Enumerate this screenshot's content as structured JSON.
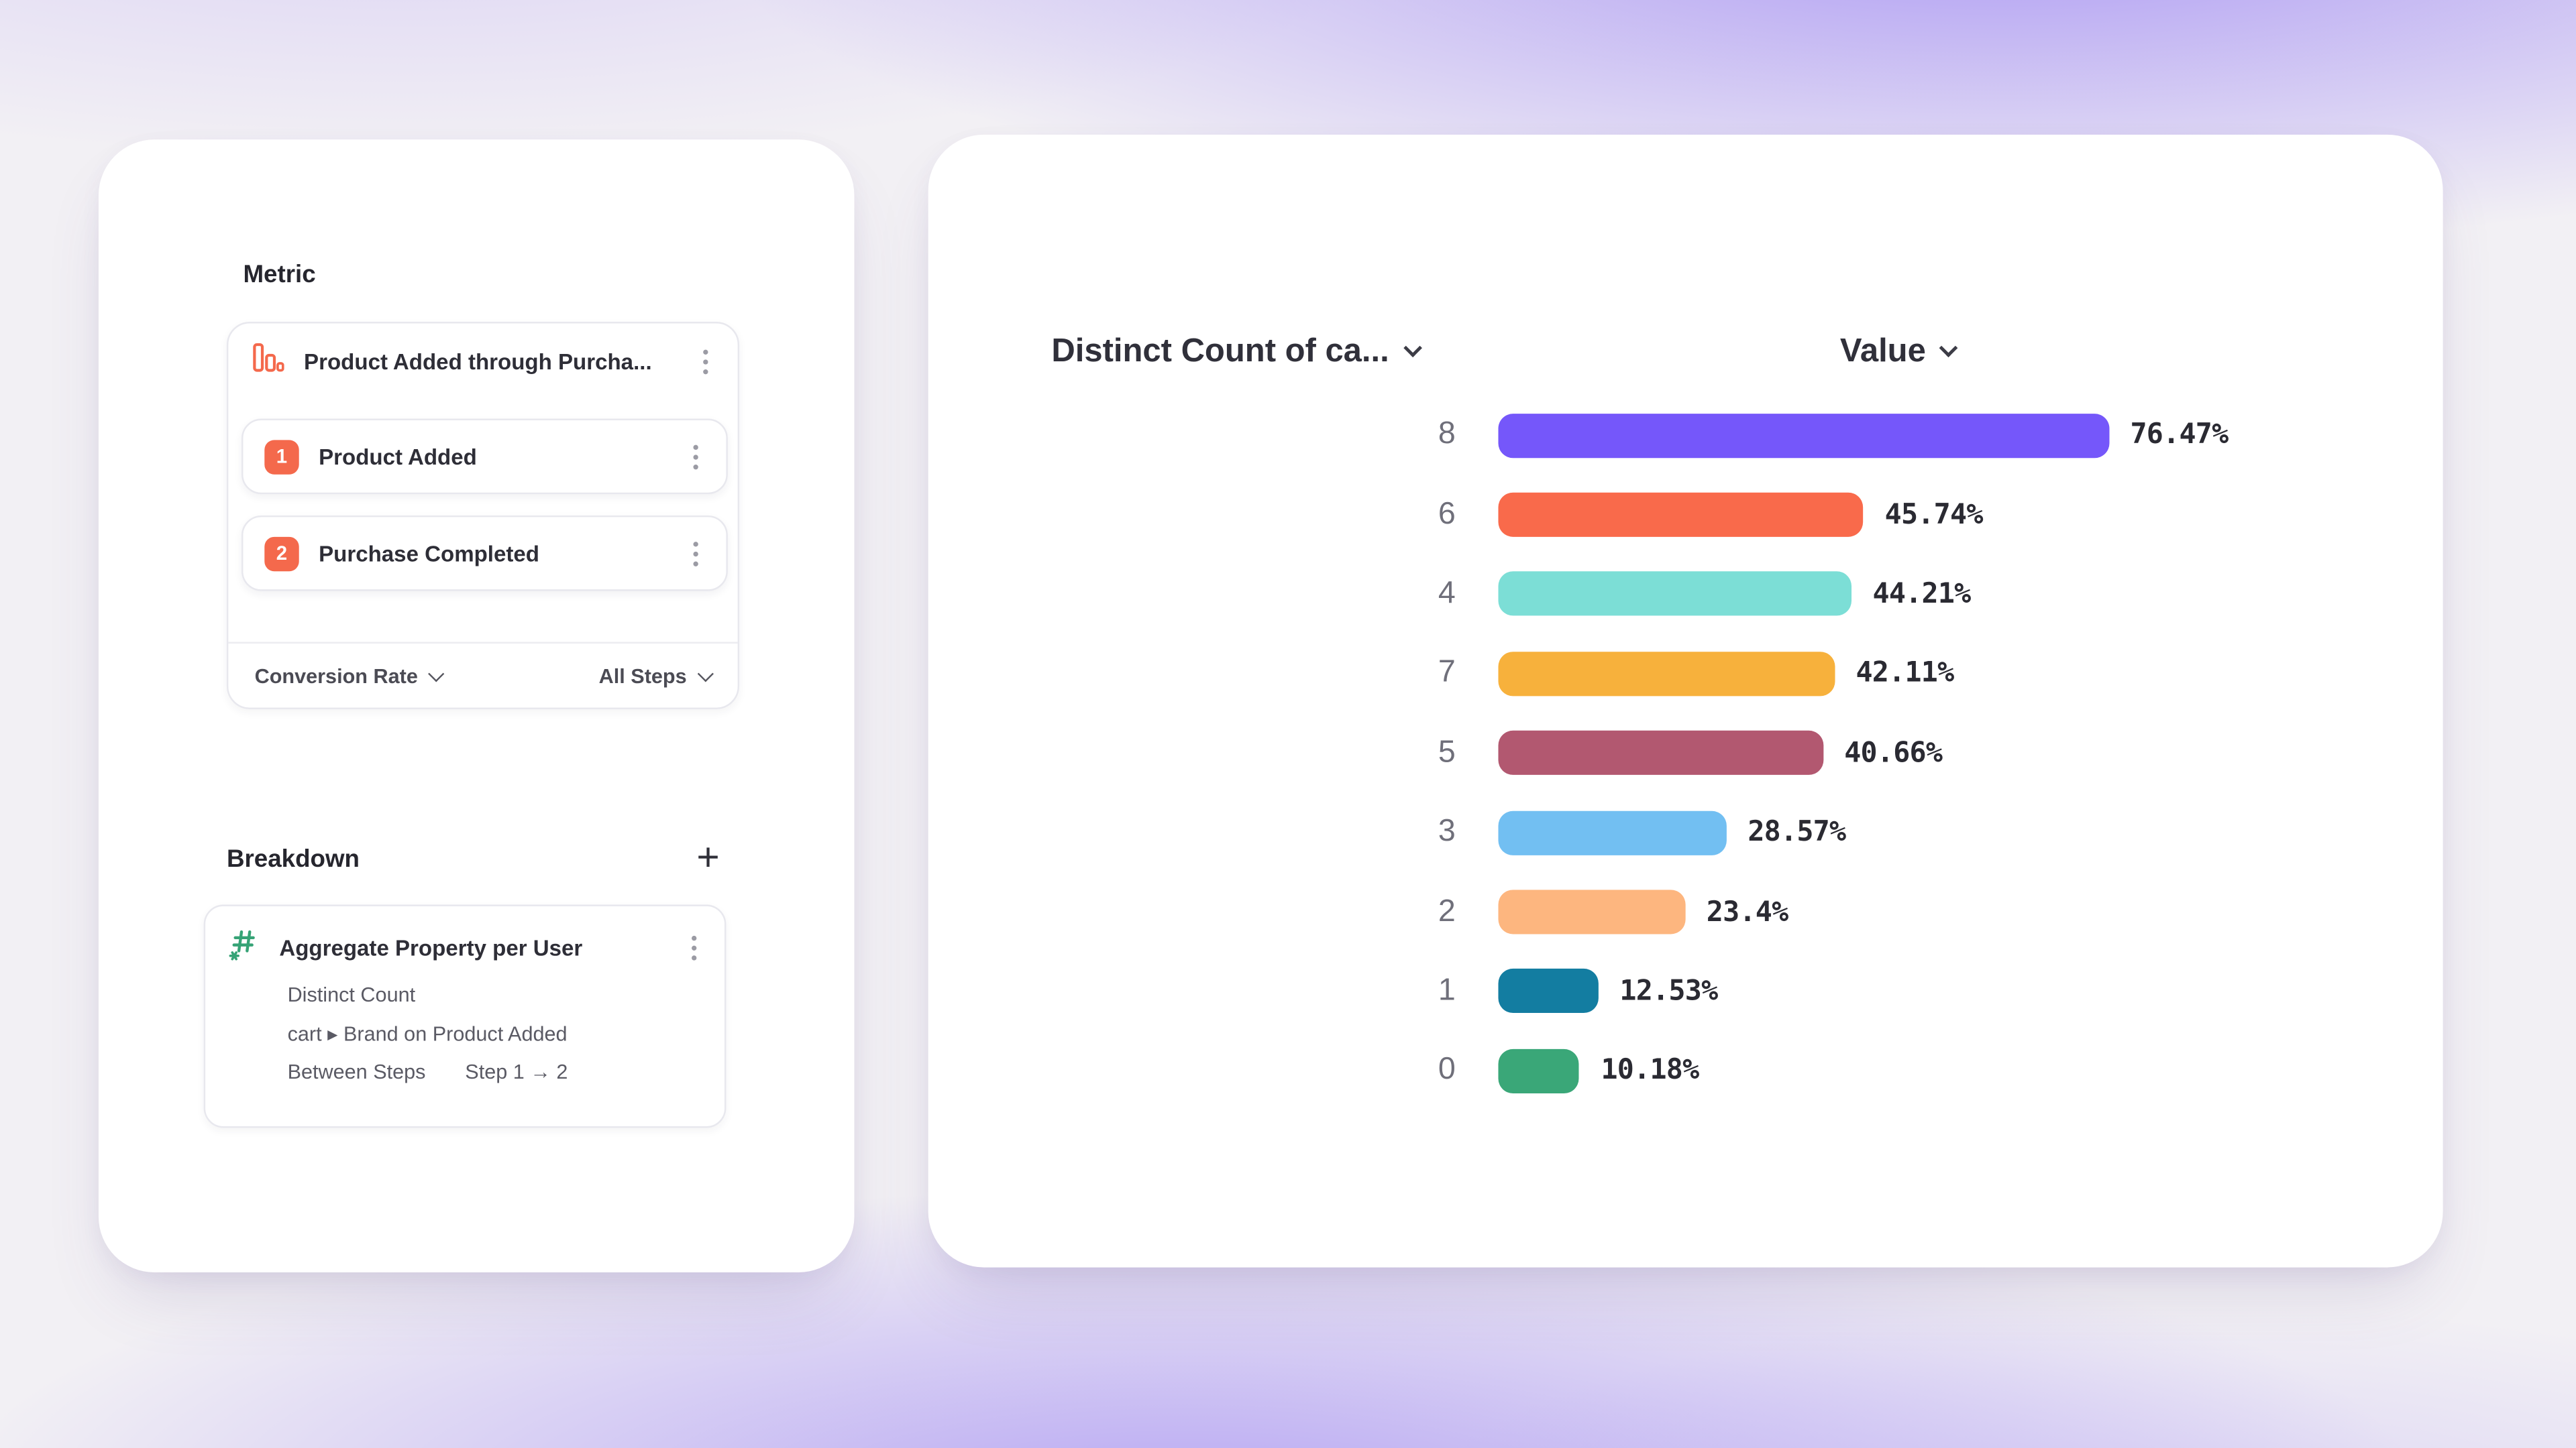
{
  "colors": {
    "accent_orange": "#F4694C",
    "accent_green": "#36A376",
    "card_background": "#FFFFFF",
    "background_purple": "#8D6CF0"
  },
  "metric_panel": {
    "title": "Metric",
    "metric_label": "Product Added through Purcha...",
    "steps": [
      {
        "number": "1",
        "label": "Product Added"
      },
      {
        "number": "2",
        "label": "Purchase Completed"
      }
    ],
    "conversion_dropdown": "Conversion Rate",
    "steps_dropdown": "All Steps"
  },
  "breakdown_panel": {
    "title": "Breakdown",
    "add_button": "+",
    "item": {
      "title": "Aggregate Property per User",
      "aggregation": "Distinct Count",
      "property_path": "cart ▸ Brand on Product Added",
      "scope_label": "Between Steps",
      "scope_value": "Step 1 → 2"
    }
  },
  "chart": {
    "category_column_header": "Distinct Count of ca...",
    "value_column_header": "Value"
  },
  "chart_data": {
    "type": "bar",
    "orientation": "horizontal",
    "title": "",
    "categories": [
      "8",
      "6",
      "4",
      "7",
      "5",
      "3",
      "2",
      "1",
      "0"
    ],
    "values": [
      76.47,
      45.74,
      44.21,
      42.11,
      40.66,
      28.57,
      23.4,
      12.53,
      10.18
    ],
    "value_labels": [
      "76.47%",
      "45.74%",
      "44.21%",
      "42.11%",
      "40.66%",
      "28.57%",
      "23.4%",
      "12.53%",
      "10.18%"
    ],
    "bar_colors": [
      "#7557FA",
      "#F96A4B",
      "#7CDED6",
      "#F7B13C",
      "#B25870",
      "#72BFF2",
      "#FDB67F",
      "#137DA1",
      "#3AA778"
    ],
    "axis_range": [
      0,
      100
    ],
    "grid": false,
    "legend": false
  }
}
